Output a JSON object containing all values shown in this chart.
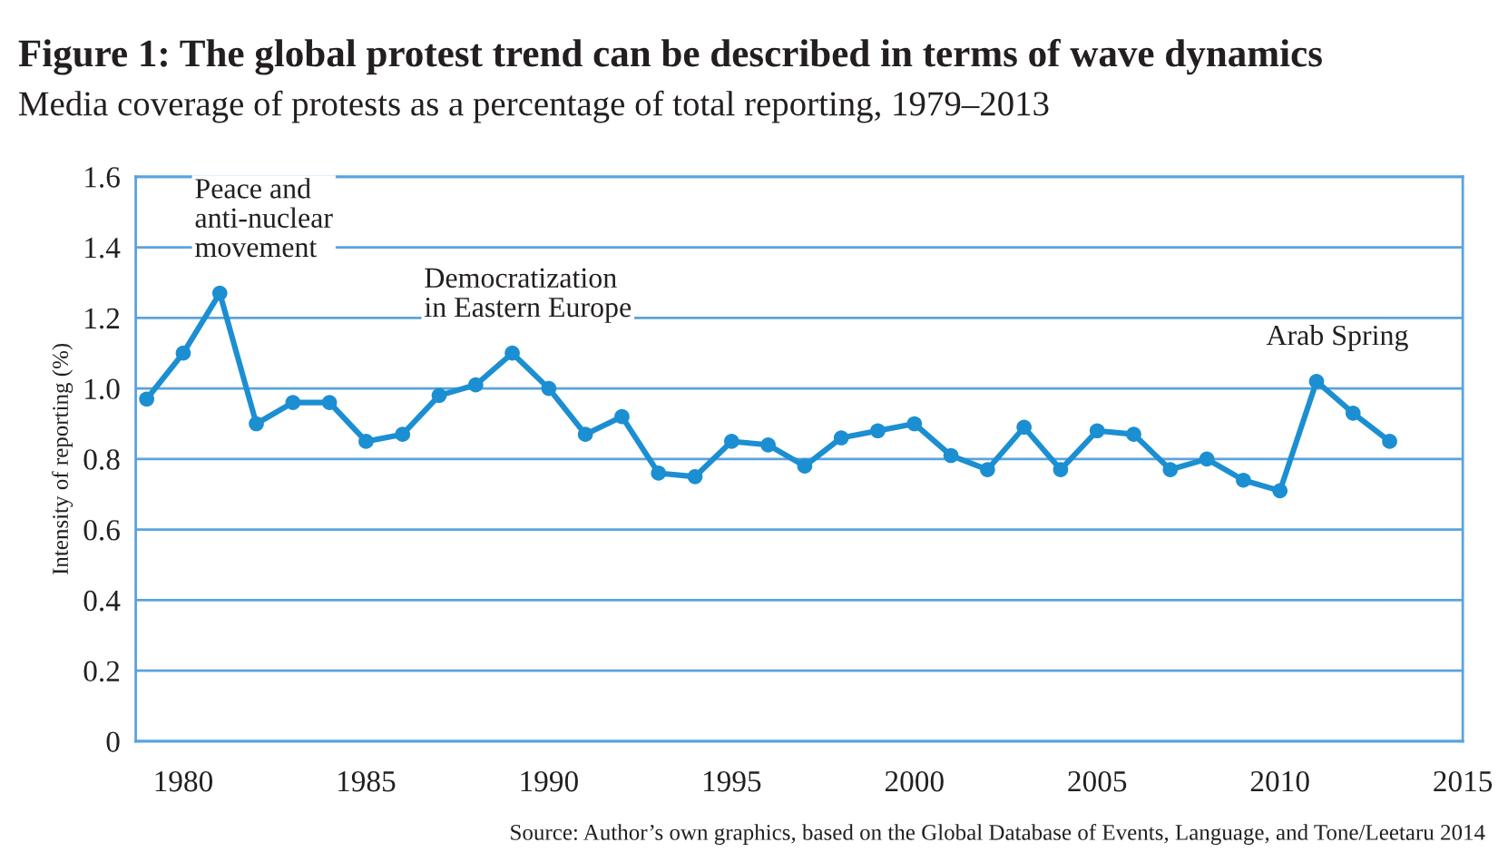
{
  "chart_data": {
    "type": "line",
    "title": "Figure 1: The global protest trend can be described in terms of wave dynamics",
    "subtitle": "Media coverage of protests as a percentage of total reporting, 1979–2013",
    "ylabel": "Intensity of reporting (%)",
    "x": [
      1979,
      1980,
      1981,
      1982,
      1983,
      1984,
      1985,
      1986,
      1987,
      1988,
      1989,
      1990,
      1991,
      1992,
      1993,
      1994,
      1995,
      1996,
      1997,
      1998,
      1999,
      2000,
      2001,
      2002,
      2003,
      2004,
      2005,
      2006,
      2007,
      2008,
      2009,
      2010,
      2011,
      2012,
      2013
    ],
    "series": [
      {
        "color": "#1b8fd2",
        "values": [
          0.97,
          1.1,
          1.27,
          0.9,
          0.96,
          0.96,
          0.85,
          0.87,
          0.98,
          1.01,
          1.1,
          1.0,
          0.87,
          0.92,
          0.76,
          0.75,
          0.85,
          0.84,
          0.78,
          0.86,
          0.88,
          0.9,
          0.81,
          0.77,
          0.89,
          0.77,
          0.88,
          0.87,
          0.77,
          0.8,
          0.74,
          0.71,
          1.02,
          0.93,
          0.85
        ]
      }
    ],
    "xlim": [
      1978.7,
      2015
    ],
    "xticks": [
      1980,
      1985,
      1990,
      1995,
      2000,
      2005,
      2010,
      2015
    ],
    "ylim": [
      0,
      1.6
    ],
    "yticks": [
      {
        "value": 0,
        "label": "0"
      },
      0.2,
      0.4,
      0.6,
      0.8,
      {
        "value": 1,
        "label": "1.0"
      },
      1.2,
      1.4,
      1.6
    ],
    "grid": "y",
    "marker": "circle",
    "line_style": "solid",
    "annotations": [
      {
        "text": "Peace and\nanti-nuclear\nmovement",
        "x": 1981,
        "y": 1.27
      },
      {
        "text": "Democratization\nin Eastern Europe",
        "x": 1989,
        "y": 1.1
      },
      {
        "text": "Arab Spring",
        "x": 2011,
        "y": 1.02
      },
      "Source: Author’s own graphics, based on the Global Database of Events, Language, and Tone/Leetaru 2014"
    ]
  }
}
